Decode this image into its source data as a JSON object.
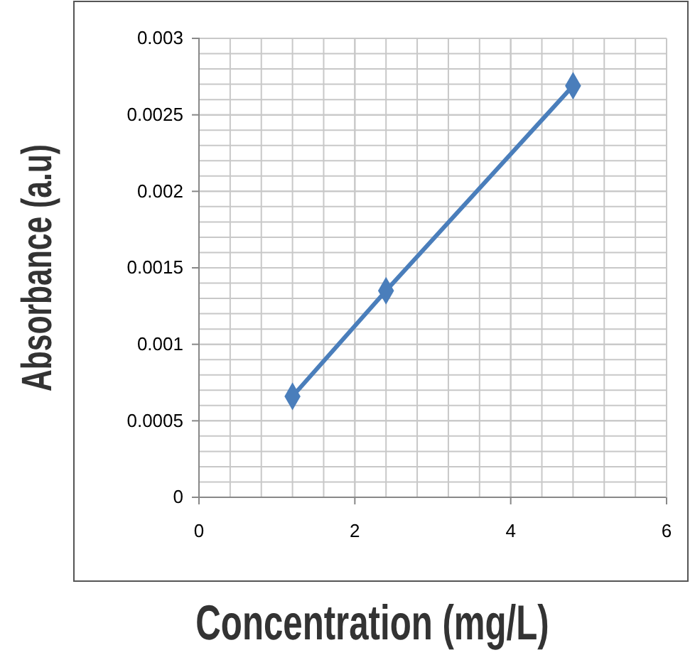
{
  "chart_data": {
    "type": "line",
    "xlabel": "Concentration (mg/L)",
    "ylabel": "Absorbance (a.u)",
    "x": [
      1.2,
      2.4,
      4.8
    ],
    "series": [
      {
        "color": "#4a7ebb",
        "values": [
          0.00066,
          0.00135,
          0.00269
        ]
      }
    ],
    "xlim": [
      0,
      6
    ],
    "xticks": [
      0,
      2,
      4,
      6
    ],
    "ylim": [
      0,
      0.003
    ],
    "yticks": [
      0,
      0.0005,
      0.001,
      0.0015,
      0.002,
      0.0025,
      0.003
    ],
    "grid": true,
    "marker": "diamond",
    "line_style": "solid"
  }
}
